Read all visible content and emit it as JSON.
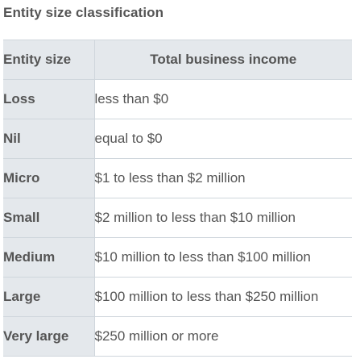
{
  "caption": "Entity size classification",
  "table": {
    "headers": [
      "Entity size",
      "Total business income"
    ],
    "rows": [
      {
        "size": "Loss",
        "income": "less than $0"
      },
      {
        "size": "Nil",
        "income": "equal to $0"
      },
      {
        "size": "Micro",
        "income": "$1 to less than $2  million"
      },
      {
        "size": "Small",
        "income": "$2  million to less than $10  million"
      },
      {
        "size": "Medium",
        "income": "$10  million to less than $100  million"
      },
      {
        "size": "Large",
        "income": "$100  million to less than $250  million"
      },
      {
        "size": "Very large",
        "income": "$250  million or more"
      }
    ]
  }
}
